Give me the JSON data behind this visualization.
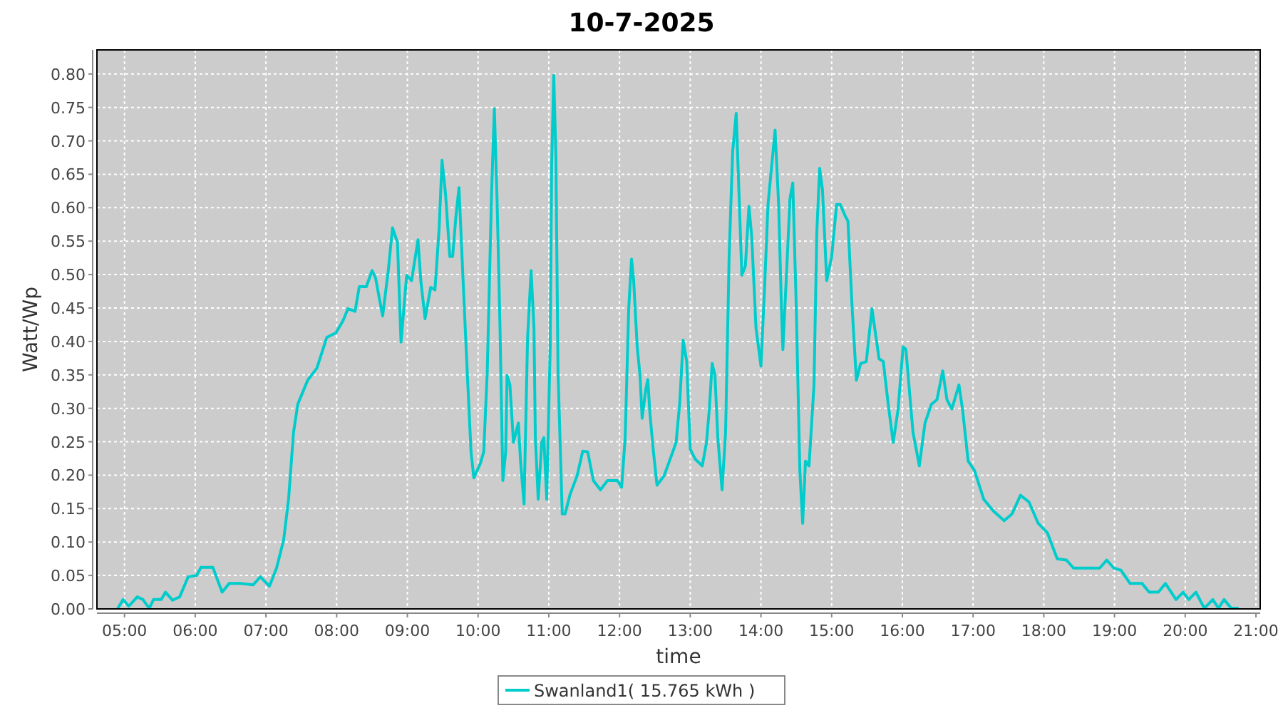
{
  "chart_data": {
    "type": "line",
    "title": "10-7-2025",
    "xlabel": "time",
    "ylabel": "Watt/Wp",
    "xlim": [
      4.61,
      21.06
    ],
    "ylim": [
      0,
      0.836
    ],
    "xticks": [
      {
        "value": 5,
        "label": "05:00"
      },
      {
        "value": 6,
        "label": "06:00"
      },
      {
        "value": 7,
        "label": "07:00"
      },
      {
        "value": 8,
        "label": "08:00"
      },
      {
        "value": 9,
        "label": "09:00"
      },
      {
        "value": 10,
        "label": "10:00"
      },
      {
        "value": 11,
        "label": "11:00"
      },
      {
        "value": 12,
        "label": "12:00"
      },
      {
        "value": 13,
        "label": "13:00"
      },
      {
        "value": 14,
        "label": "14:00"
      },
      {
        "value": 15,
        "label": "15:00"
      },
      {
        "value": 16,
        "label": "16:00"
      },
      {
        "value": 17,
        "label": "17:00"
      },
      {
        "value": 18,
        "label": "18:00"
      },
      {
        "value": 19,
        "label": "19:00"
      },
      {
        "value": 20,
        "label": "20:00"
      },
      {
        "value": 21,
        "label": "21:00"
      }
    ],
    "yticks": [
      {
        "value": 0,
        "label": "0.00"
      },
      {
        "value": 0.05,
        "label": "0.05"
      },
      {
        "value": 0.1,
        "label": "0.10"
      },
      {
        "value": 0.15,
        "label": "0.15"
      },
      {
        "value": 0.2,
        "label": "0.20"
      },
      {
        "value": 0.25,
        "label": "0.25"
      },
      {
        "value": 0.3,
        "label": "0.30"
      },
      {
        "value": 0.35,
        "label": "0.35"
      },
      {
        "value": 0.4,
        "label": "0.40"
      },
      {
        "value": 0.45,
        "label": "0.45"
      },
      {
        "value": 0.5,
        "label": "0.50"
      },
      {
        "value": 0.55,
        "label": "0.55"
      },
      {
        "value": 0.6,
        "label": "0.60"
      },
      {
        "value": 0.65,
        "label": "0.65"
      },
      {
        "value": 0.7,
        "label": "0.70"
      },
      {
        "value": 0.75,
        "label": "0.75"
      },
      {
        "value": 0.8,
        "label": "0.80"
      }
    ],
    "grid": true,
    "legend": "bottom",
    "marker": "none",
    "line_style": "solid",
    "series": [
      {
        "name": "Swanland1( 15.765 kWh )",
        "color": "#00cccc",
        "x": [
          4.9,
          4.98,
          5.06,
          5.18,
          5.26,
          5.35,
          5.41,
          5.52,
          5.58,
          5.68,
          5.78,
          5.9,
          6.02,
          6.08,
          6.25,
          6.38,
          6.48,
          6.65,
          6.82,
          6.92,
          7.05,
          7.15,
          7.25,
          7.32,
          7.39,
          7.45,
          7.59,
          7.72,
          7.86,
          7.99,
          8.09,
          8.16,
          8.26,
          8.32,
          8.42,
          8.5,
          8.55,
          8.65,
          8.73,
          8.79,
          8.86,
          8.91,
          8.99,
          9.06,
          9.15,
          9.19,
          9.25,
          9.33,
          9.39,
          9.45,
          9.49,
          9.54,
          9.6,
          9.64,
          9.69,
          9.73,
          9.77,
          9.83,
          9.9,
          9.94,
          10.03,
          10.08,
          10.13,
          10.19,
          10.23,
          10.27,
          10.31,
          10.35,
          10.39,
          10.41,
          10.45,
          10.5,
          10.57,
          10.6,
          10.65,
          10.7,
          10.75,
          10.79,
          10.81,
          10.85,
          10.9,
          10.93,
          10.97,
          11.02,
          11.04,
          11.07,
          11.1,
          11.13,
          11.19,
          11.23,
          11.3,
          11.4,
          11.48,
          11.55,
          11.63,
          11.73,
          11.83,
          11.97,
          12.03,
          12.08,
          12.13,
          12.17,
          12.2,
          12.25,
          12.29,
          12.32,
          12.37,
          12.4,
          12.43,
          12.48,
          12.53,
          12.63,
          12.73,
          12.8,
          12.85,
          12.9,
          12.95,
          13.0,
          13.07,
          13.17,
          13.23,
          13.27,
          13.31,
          13.35,
          13.39,
          13.45,
          13.5,
          13.55,
          13.6,
          13.65,
          13.69,
          13.73,
          13.78,
          13.83,
          13.87,
          13.93,
          14.0,
          14.05,
          14.1,
          14.2,
          14.25,
          14.29,
          14.31,
          14.37,
          14.41,
          14.45,
          14.5,
          14.55,
          14.59,
          14.63,
          14.68,
          14.75,
          14.79,
          14.83,
          14.87,
          14.93,
          15.0,
          15.07,
          15.12,
          15.19,
          15.23,
          15.29,
          15.35,
          15.41,
          15.49,
          15.57,
          15.67,
          15.73,
          15.8,
          15.87,
          15.94,
          16.01,
          16.05,
          16.15,
          16.24,
          16.32,
          16.41,
          16.49,
          16.57,
          16.63,
          16.7,
          16.8,
          16.85,
          16.93,
          17.02,
          17.15,
          17.29,
          17.44,
          17.55,
          17.67,
          17.79,
          17.92,
          18.05,
          18.19,
          18.32,
          18.42,
          18.62,
          18.79,
          18.89,
          18.99,
          19.09,
          19.22,
          19.39,
          19.49,
          19.62,
          19.72,
          19.87,
          19.97,
          20.05,
          20.15,
          20.27,
          20.39,
          20.47,
          20.55,
          20.65,
          20.74
        ],
        "values": [
          0,
          0.014,
          0.004,
          0.018,
          0.014,
          0.001,
          0.014,
          0.014,
          0.025,
          0.013,
          0.018,
          0.048,
          0.05,
          0.062,
          0.062,
          0.025,
          0.038,
          0.038,
          0.036,
          0.048,
          0.034,
          0.061,
          0.103,
          0.164,
          0.264,
          0.306,
          0.342,
          0.36,
          0.406,
          0.413,
          0.431,
          0.449,
          0.445,
          0.482,
          0.482,
          0.506,
          0.495,
          0.438,
          0.506,
          0.57,
          0.548,
          0.399,
          0.499,
          0.491,
          0.552,
          0.491,
          0.434,
          0.481,
          0.477,
          0.57,
          0.671,
          0.62,
          0.527,
          0.527,
          0.591,
          0.63,
          0.534,
          0.392,
          0.235,
          0.196,
          0.217,
          0.235,
          0.356,
          0.62,
          0.748,
          0.605,
          0.42,
          0.192,
          0.235,
          0.349,
          0.335,
          0.249,
          0.278,
          0.221,
          0.157,
          0.406,
          0.506,
          0.42,
          0.256,
          0.164,
          0.249,
          0.256,
          0.164,
          0.392,
          0.662,
          0.798,
          0.677,
          0.356,
          0.142,
          0.142,
          0.171,
          0.199,
          0.236,
          0.235,
          0.192,
          0.178,
          0.192,
          0.192,
          0.182,
          0.256,
          0.449,
          0.523,
          0.491,
          0.392,
          0.349,
          0.285,
          0.328,
          0.343,
          0.292,
          0.235,
          0.185,
          0.199,
          0.228,
          0.249,
          0.306,
          0.402,
          0.37,
          0.239,
          0.224,
          0.214,
          0.249,
          0.299,
          0.367,
          0.349,
          0.256,
          0.178,
          0.264,
          0.527,
          0.684,
          0.741,
          0.62,
          0.499,
          0.513,
          0.602,
          0.556,
          0.42,
          0.363,
          0.477,
          0.605,
          0.716,
          0.605,
          0.449,
          0.388,
          0.52,
          0.613,
          0.637,
          0.449,
          0.207,
          0.128,
          0.221,
          0.214,
          0.335,
          0.563,
          0.659,
          0.627,
          0.491,
          0.527,
          0.605,
          0.605,
          0.588,
          0.58,
          0.449,
          0.342,
          0.367,
          0.37,
          0.449,
          0.374,
          0.37,
          0.306,
          0.249,
          0.299,
          0.392,
          0.388,
          0.264,
          0.214,
          0.278,
          0.306,
          0.313,
          0.356,
          0.313,
          0.299,
          0.335,
          0.299,
          0.221,
          0.207,
          0.164,
          0.146,
          0.132,
          0.142,
          0.17,
          0.16,
          0.128,
          0.114,
          0.075,
          0.073,
          0.061,
          0.061,
          0.061,
          0.073,
          0.061,
          0.058,
          0.038,
          0.038,
          0.025,
          0.025,
          0.038,
          0.014,
          0.025,
          0.014,
          0.025,
          0.001,
          0.014,
          0.001,
          0.014,
          0.001,
          0.001
        ]
      }
    ]
  }
}
